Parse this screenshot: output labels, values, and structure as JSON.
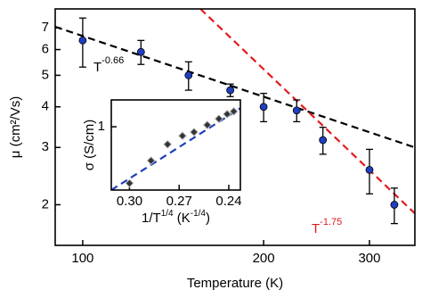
{
  "chart_data": [
    {
      "type": "scatter",
      "x_label": "Temperature  (K)",
      "y_label": "μ (cm²/Vs)",
      "xscale": "log",
      "yscale": "log",
      "xlim": [
        90,
        357
      ],
      "ylim": [
        1.5,
        8
      ],
      "xticks": [
        100,
        200,
        300
      ],
      "yticks": [
        2,
        3,
        4,
        5,
        6,
        7
      ],
      "color": "#1f3fbf",
      "x": [
        100,
        125,
        150,
        176,
        200,
        227,
        251,
        300,
        330
      ],
      "y": [
        6.4,
        5.9,
        5.0,
        4.5,
        4.0,
        3.9,
        3.16,
        2.56,
        2.0
      ],
      "error": [
        1.1,
        0.5,
        0.5,
        0.2,
        0.4,
        0.3,
        0.3,
        0.4,
        0.25
      ],
      "fits": [
        {
          "x": [
            90,
            357
          ],
          "y": [
            7.05,
            3.0
          ],
          "color": "#000000",
          "label": [
            "T",
            "-0.66"
          ]
        },
        {
          "x": [
            157,
            357
          ],
          "y": [
            8,
            1.88
          ],
          "color": "#e41a1c",
          "label": [
            "T",
            "-1.75"
          ]
        }
      ]
    },
    {
      "type": "scatter",
      "x_label": [
        "1/T",
        "1/4",
        " (K",
        "-1/4",
        ")"
      ],
      "y_label": "σ (S/cm)",
      "xscale": "linear",
      "yscale": "log",
      "xlim": [
        0.311,
        0.233
      ],
      "ylim": [
        0.25,
        1.8
      ],
      "xticks": [
        {
          "value": 0.3,
          "label": "0.30"
        },
        0.27,
        0.24
      ],
      "yticks": [
        1
      ],
      "color": "#333333",
      "x": [
        0.3,
        0.287,
        0.277,
        0.268,
        0.261,
        0.253,
        0.246,
        0.241,
        0.237
      ],
      "y": [
        0.29,
        0.476,
        0.68,
        0.82,
        0.89,
        1.04,
        1.19,
        1.32,
        1.4
      ],
      "fits": [
        {
          "x": [
            0.311,
            0.233
          ],
          "y": [
            0.25,
            1.5
          ],
          "color": "#1f3fbf"
        }
      ]
    }
  ]
}
